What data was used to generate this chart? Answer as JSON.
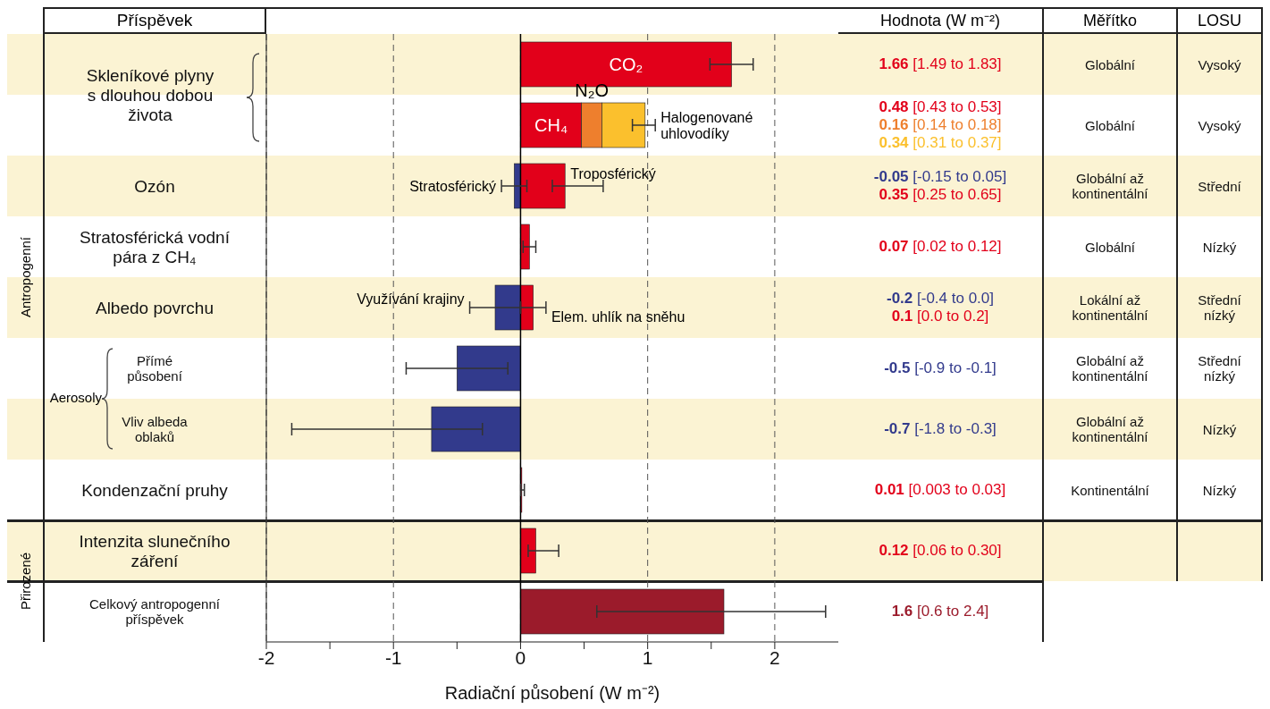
{
  "chart_data": [
    {
      "type": "bar",
      "orientation": "horizontal",
      "stacked": true,
      "ylabel": "Příspěvek",
      "xlabel": "Radiační působení (W m⁻²)",
      "categories": [
        "Skleníkové plyny s dlouhou dobou života",
        null,
        "Ozón",
        "Stratosférická vodní pára z CH₄",
        "Albedo povrchu",
        "Přímé působení",
        "Vliv albeda oblaků",
        "Kondenzační pruhy",
        "Intenzita slunečního záření",
        "Celkový antropogenní příspěvek"
      ],
      "xlim": [
        -2,
        2.5
      ],
      "xticks": [
        -2,
        {
          "value": -1.5,
          "label": null
        },
        -1,
        {
          "value": -0.5,
          "label": null
        },
        0,
        {
          "value": 0.5,
          "label": null
        },
        1,
        {
          "value": 1.5,
          "label": null
        },
        2
      ],
      "grid": "x",
      "legend": false,
      "ref_lines": [
        {
          "axis": "x",
          "value": 0,
          "color": "#000000",
          "line_style": "solid"
        }
      ],
      "annotations": [
        "Aerosoly",
        "Antropogenní",
        "Přirozené"
      ],
      "series": [
        {
          "name": "CO₂",
          "color": "#e2001a",
          "values": [
            1.66,
            null,
            null,
            null,
            null,
            null,
            null,
            null,
            null,
            null
          ],
          "errors": [
            [
              1.49,
              1.83
            ],
            null,
            null,
            null,
            null,
            null,
            null,
            null,
            null,
            null
          ]
        },
        {
          "name": "CH₄",
          "color": "#e2001a",
          "values": [
            null,
            0.48,
            null,
            null,
            null,
            null,
            null,
            null,
            null,
            null
          ]
        },
        {
          "name": "N₂O",
          "color": "#ee7f2d",
          "values": [
            null,
            0.16,
            null,
            null,
            null,
            null,
            null,
            null,
            null,
            null
          ]
        },
        {
          "name": "Halogenované uhlovodíky",
          "color": "#fbc02d",
          "values": [
            null,
            0.34,
            null,
            null,
            null,
            null,
            null,
            null,
            null,
            null
          ],
          "errors": [
            null,
            [
              0.88,
              1.06
            ],
            null,
            null,
            null,
            null,
            null,
            null,
            null,
            null
          ]
        },
        {
          "name": "Stratosférický",
          "color": "#323a8c",
          "values": [
            null,
            null,
            -0.05,
            null,
            null,
            null,
            null,
            null,
            null,
            null
          ],
          "errors": [
            null,
            null,
            [
              -0.15,
              0.05
            ],
            null,
            null,
            null,
            null,
            null,
            null,
            null
          ]
        },
        {
          "name": "Troposférický",
          "color": "#e2001a",
          "values": [
            null,
            null,
            0.35,
            null,
            null,
            null,
            null,
            null,
            null,
            null
          ],
          "errors": [
            null,
            null,
            [
              0.25,
              0.65
            ],
            null,
            null,
            null,
            null,
            null,
            null,
            null
          ]
        },
        {
          "color": "#e2001a",
          "values": [
            null,
            null,
            null,
            0.07,
            null,
            null,
            null,
            0.01,
            0.12,
            null
          ],
          "errors": [
            null,
            null,
            null,
            [
              0.02,
              0.12
            ],
            null,
            null,
            null,
            [
              0.003,
              0.03
            ],
            [
              0.06,
              0.3
            ],
            null
          ]
        },
        {
          "name": "Využívání krajiny",
          "color": "#323a8c",
          "values": [
            null,
            null,
            null,
            null,
            -0.2,
            null,
            null,
            null,
            null,
            null
          ],
          "errors": [
            null,
            null,
            null,
            null,
            [
              -0.4,
              0.0
            ],
            null,
            null,
            null,
            null,
            null
          ]
        },
        {
          "name": "Elem. uhlík na sněhu",
          "color": "#e2001a",
          "values": [
            null,
            null,
            null,
            null,
            0.1,
            null,
            null,
            null,
            null,
            null
          ],
          "errors": [
            null,
            null,
            null,
            null,
            [
              0.0,
              0.2
            ],
            null,
            null,
            null,
            null,
            null
          ]
        },
        {
          "color": "#323a8c",
          "values": [
            null,
            null,
            null,
            null,
            null,
            -0.5,
            -0.7,
            null,
            null,
            null
          ],
          "errors": [
            null,
            null,
            null,
            null,
            null,
            [
              -0.9,
              -0.1
            ],
            [
              -1.8,
              -0.3
            ],
            null,
            null,
            null
          ]
        },
        {
          "color": "#9b1b2b",
          "values": [
            null,
            null,
            null,
            null,
            null,
            null,
            null,
            null,
            null,
            1.6
          ],
          "errors": [
            null,
            null,
            null,
            null,
            null,
            null,
            null,
            null,
            null,
            [
              0.6,
              2.4
            ]
          ]
        }
      ]
    },
    {
      "type": "other",
      "title": "Hodnota (W m⁻²)",
      "annotations": [
        "1.66 [1.49 to 1.83]",
        "0.48 [0.43 to 0.53]",
        "0.16 [0.14 to 0.18]",
        "0.34 [0.31 to 0.37]",
        "-0.05 [-0.15 to 0.05]",
        "0.35 [0.25 to 0.65]",
        "0.07 [0.02 to 0.12]",
        "-0.2 [-0.4 to 0.0]",
        "0.1 [0.0 to 0.2]",
        "-0.5 [-0.9 to -0.1]",
        "-0.7 [-1.8 to -0.3]",
        "0.01 [0.003 to 0.03]",
        "0.12 [0.06 to 0.30]",
        "1.6 [0.6 to 2.4]"
      ],
      "colors": [
        "#e2001a",
        "#e2001a",
        "#ee7f2d",
        "#fbc02d",
        "#323a8c",
        "#e2001a",
        "#e2001a",
        "#323a8c",
        "#e2001a",
        "#323a8c",
        "#323a8c",
        "#e2001a",
        "#e2001a",
        "#9b1b2b"
      ]
    },
    {
      "type": "other",
      "title": "Měřítko",
      "annotations": [
        "Globální",
        "Globální",
        "Globální až kontinentální",
        "Globální",
        "Lokální až kontinentální",
        "Globální až kontinentální",
        "Globální až kontinentální",
        "Kontinentální"
      ]
    },
    {
      "type": "other",
      "title": "LOSU",
      "annotations": [
        "Vysoký",
        "Vysoký",
        "Střední",
        "Nízký",
        "Střední nízký",
        "Střední nízký",
        "Nízký",
        "Nízký"
      ]
    }
  ]
}
